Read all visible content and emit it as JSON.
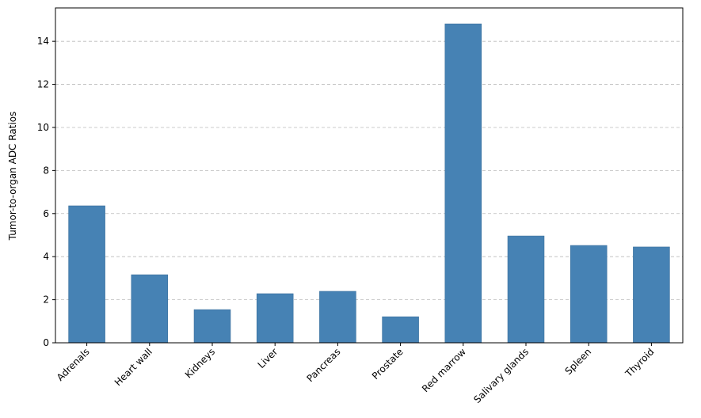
{
  "chart_data": {
    "type": "bar",
    "y_label": "Tumor-to-organ ADC Ratios",
    "categories": [
      "Adrenals",
      "Heart wall",
      "Kidneys",
      "Liver",
      "Pancreas",
      "Prostate",
      "Red marrow",
      "Salivary glands",
      "Spleen",
      "Thyroid"
    ],
    "values": [
      6.36,
      3.16,
      1.54,
      2.28,
      2.39,
      1.21,
      14.81,
      4.96,
      4.52,
      4.45
    ],
    "color": "#4682b4",
    "ylim": [
      0,
      15.55
    ],
    "yticks": [
      0,
      2,
      4,
      6,
      8,
      10,
      12,
      14
    ],
    "grid": true
  }
}
